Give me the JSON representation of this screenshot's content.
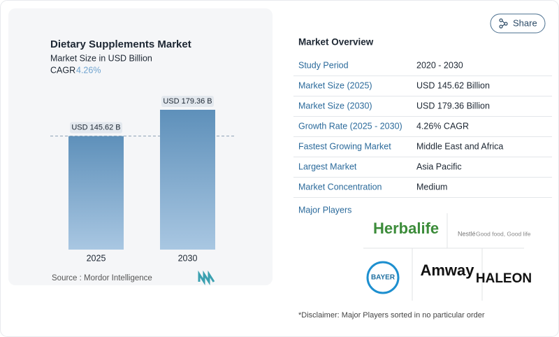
{
  "chart_data": {
    "type": "bar",
    "title": "Dietary Supplements Market",
    "subtitle": "Market Size in USD Billion",
    "cagr_label": "CAGR",
    "cagr": "4.26%",
    "categories": [
      "2025",
      "2030"
    ],
    "values": [
      145.62,
      179.36
    ],
    "value_labels": [
      "USD 145.62 B",
      "USD 179.36 B"
    ],
    "color": "#5e90ba",
    "source": "Source :  Mordor Intelligence"
  },
  "share": "Share",
  "overview": {
    "title": "Market Overview",
    "rows": [
      [
        "Study Period",
        "2020 - 2030"
      ],
      [
        "Market Size (2025)",
        "USD 145.62 Billion"
      ],
      [
        "Market Size (2030)",
        "USD 179.36 Billion"
      ],
      [
        "Growth Rate (2025 - 2030)",
        "4.26% CAGR"
      ],
      [
        "Fastest Growing Market",
        "Middle East and Africa"
      ],
      [
        "Largest Market",
        "Asia Pacific"
      ],
      [
        "Market Concentration",
        "Medium"
      ]
    ],
    "players_title": "Major Players",
    "players": [
      "Herbalife",
      "Nestlé",
      "Good food, Good life",
      "BAYER",
      "Amway",
      "HALEON"
    ],
    "disclaimer": "*Disclaimer: Major Players sorted in no particular order"
  }
}
